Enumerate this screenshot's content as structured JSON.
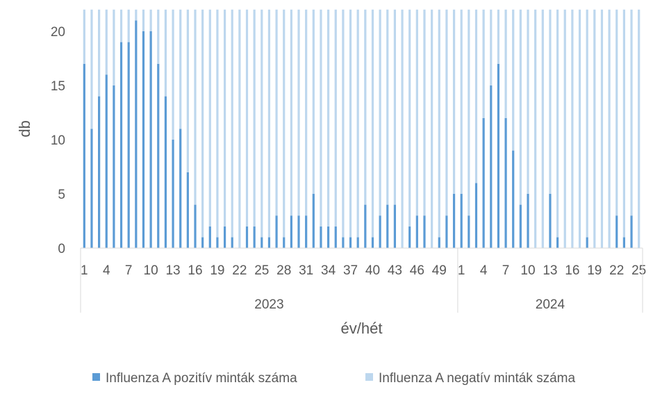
{
  "chart_data": {
    "type": "bar",
    "stacked": true,
    "percent_total": true,
    "xlabel": "év/hét",
    "ylabel": "db",
    "ylim": [
      0,
      22
    ],
    "yticks": [
      0,
      5,
      10,
      15,
      20
    ],
    "grid": false,
    "legend_position": "bottom",
    "groups": [
      {
        "label": "2023",
        "weeks": [
          1,
          2,
          3,
          4,
          5,
          6,
          7,
          8,
          9,
          10,
          11,
          12,
          13,
          14,
          15,
          16,
          17,
          18,
          19,
          20,
          21,
          22,
          23,
          24,
          25,
          26,
          27,
          28,
          29,
          30,
          31,
          32,
          33,
          34,
          35,
          36,
          37,
          38,
          39,
          40,
          41,
          42,
          43,
          44,
          45,
          46,
          47,
          48,
          49,
          50,
          51
        ]
      },
      {
        "label": "2024",
        "weeks": [
          1,
          2,
          3,
          4,
          5,
          6,
          7,
          8,
          9,
          10,
          11,
          12,
          13,
          14,
          15,
          16,
          17,
          18,
          19,
          20,
          21,
          22,
          23,
          24,
          25
        ]
      }
    ],
    "tick_labels": {
      "2023": [
        "1",
        "4",
        "7",
        "10",
        "13",
        "16",
        "19",
        "22",
        "25",
        "28",
        "31",
        "34",
        "37",
        "40",
        "43",
        "46",
        "49"
      ],
      "2024": [
        "1",
        "4",
        "7",
        "10",
        "13",
        "16",
        "19",
        "22",
        "25"
      ]
    },
    "tick_label_weeks": {
      "2023": [
        1,
        4,
        7,
        10,
        13,
        16,
        19,
        22,
        25,
        28,
        31,
        34,
        37,
        40,
        43,
        46,
        49
      ],
      "2024": [
        1,
        4,
        7,
        10,
        13,
        16,
        19,
        22,
        25
      ]
    },
    "series": [
      {
        "name": "Influenza A pozitív minták száma",
        "color": "#5b9bd5",
        "values": [
          17,
          11,
          14,
          16,
          15,
          19,
          19,
          21,
          20,
          20,
          17,
          14,
          10,
          11,
          7,
          4,
          1,
          2,
          1,
          2,
          1,
          0,
          2,
          2,
          1,
          1,
          3,
          1,
          3,
          3,
          3,
          5,
          2,
          2,
          2,
          1,
          1,
          1,
          4,
          1,
          3,
          4,
          4,
          0,
          2,
          3,
          3,
          0,
          1,
          3,
          5,
          5,
          3,
          6,
          12,
          15,
          17,
          12,
          9,
          4,
          5,
          0,
          0,
          5,
          1,
          0,
          0,
          0,
          1,
          0,
          0,
          0,
          3,
          1,
          3,
          0
        ]
      },
      {
        "name": "Influenza A negatív minták száma",
        "color": "#bdd7ee",
        "values": [
          5,
          11,
          8,
          6,
          7,
          3,
          3,
          1,
          2,
          2,
          5,
          8,
          12,
          11,
          15,
          18,
          21,
          20,
          21,
          20,
          21,
          22,
          20,
          20,
          21,
          21,
          19,
          21,
          19,
          19,
          19,
          17,
          20,
          20,
          20,
          21,
          21,
          21,
          18,
          21,
          19,
          18,
          18,
          22,
          20,
          19,
          19,
          22,
          21,
          19,
          17,
          17,
          19,
          16,
          10,
          7,
          5,
          10,
          13,
          18,
          17,
          22,
          22,
          17,
          21,
          22,
          22,
          22,
          21,
          22,
          22,
          22,
          19,
          21,
          19,
          22
        ]
      }
    ]
  }
}
